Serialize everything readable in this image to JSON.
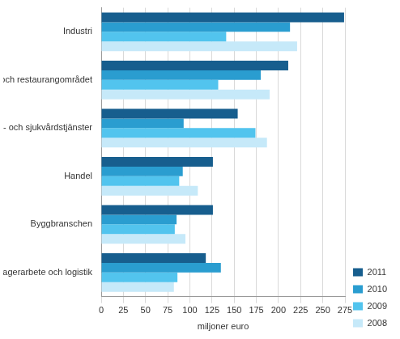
{
  "chart_data": {
    "type": "bar",
    "orientation": "horizontal",
    "categories": [
      "Industri",
      "Hotell- och restaurangområdet",
      "Social-, hälso- och sjukvårdstjänster",
      "Handel",
      "Byggbranschen",
      "Transport, lagerarbete och logistik"
    ],
    "series": [
      {
        "name": "2011",
        "color": "#175e8e",
        "values": [
          274,
          211,
          154,
          126,
          126,
          118
        ]
      },
      {
        "name": "2010",
        "color": "#2a9dd0",
        "values": [
          213,
          180,
          93,
          92,
          85,
          135
        ]
      },
      {
        "name": "2009",
        "color": "#52c4ee",
        "values": [
          141,
          132,
          174,
          88,
          83,
          86
        ]
      },
      {
        "name": "2008",
        "color": "#c6e9f9",
        "values": [
          221,
          190,
          187,
          109,
          95,
          82
        ]
      }
    ],
    "x_label": "miljoner euro",
    "xlim": [
      0,
      275
    ],
    "xticks": [
      0,
      25,
      50,
      75,
      100,
      125,
      150,
      175,
      200,
      225,
      250,
      275
    ],
    "grid": true,
    "legend": "lower right"
  }
}
